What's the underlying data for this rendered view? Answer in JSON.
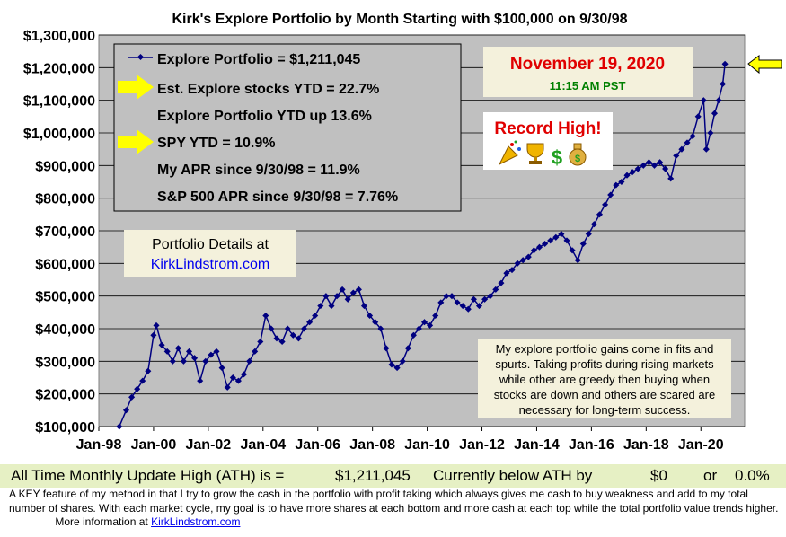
{
  "chart_data": {
    "type": "line",
    "title": "Kirk's Explore Portfolio by Month Starting with $100,000 on 9/30/98",
    "xlabel": "",
    "ylabel": "",
    "ylim": [
      100000,
      1300000
    ],
    "yticks": [
      "$100,000",
      "$200,000",
      "$300,000",
      "$400,000",
      "$500,000",
      "$600,000",
      "$700,000",
      "$800,000",
      "$900,000",
      "$1,000,000",
      "$1,100,000",
      "$1,200,000",
      "$1,300,000"
    ],
    "xlim": [
      1998.0,
      2021.6
    ],
    "xticks": [
      {
        "label": "Jan-98",
        "x": 1998.0
      },
      {
        "label": "Jan-00",
        "x": 2000.0
      },
      {
        "label": "Jan-02",
        "x": 2002.0
      },
      {
        "label": "Jan-04",
        "x": 2004.0
      },
      {
        "label": "Jan-06",
        "x": 2006.0
      },
      {
        "label": "Jan-08",
        "x": 2008.0
      },
      {
        "label": "Jan-10",
        "x": 2010.0
      },
      {
        "label": "Jan-12",
        "x": 2012.0
      },
      {
        "label": "Jan-14",
        "x": 2014.0
      },
      {
        "label": "Jan-16",
        "x": 2016.0
      },
      {
        "label": "Jan-18",
        "x": 2018.0
      },
      {
        "label": "Jan-20",
        "x": 2020.0
      }
    ],
    "grid": true,
    "legend_position": "top-left",
    "series": [
      {
        "name": "Explore Portfolio",
        "color": "#000080",
        "points": [
          [
            1998.75,
            100000
          ],
          [
            1999.0,
            150000
          ],
          [
            1999.2,
            190000
          ],
          [
            1999.4,
            215000
          ],
          [
            1999.6,
            240000
          ],
          [
            1999.8,
            270000
          ],
          [
            2000.0,
            380000
          ],
          [
            2000.1,
            410000
          ],
          [
            2000.3,
            350000
          ],
          [
            2000.5,
            330000
          ],
          [
            2000.7,
            300000
          ],
          [
            2000.9,
            340000
          ],
          [
            2001.1,
            300000
          ],
          [
            2001.3,
            330000
          ],
          [
            2001.5,
            310000
          ],
          [
            2001.7,
            240000
          ],
          [
            2001.9,
            300000
          ],
          [
            2002.1,
            320000
          ],
          [
            2002.3,
            330000
          ],
          [
            2002.5,
            280000
          ],
          [
            2002.7,
            220000
          ],
          [
            2002.9,
            250000
          ],
          [
            2003.1,
            240000
          ],
          [
            2003.3,
            260000
          ],
          [
            2003.5,
            300000
          ],
          [
            2003.7,
            330000
          ],
          [
            2003.9,
            360000
          ],
          [
            2004.1,
            440000
          ],
          [
            2004.3,
            400000
          ],
          [
            2004.5,
            370000
          ],
          [
            2004.7,
            360000
          ],
          [
            2004.9,
            400000
          ],
          [
            2005.1,
            380000
          ],
          [
            2005.3,
            370000
          ],
          [
            2005.5,
            400000
          ],
          [
            2005.7,
            420000
          ],
          [
            2005.9,
            440000
          ],
          [
            2006.1,
            470000
          ],
          [
            2006.3,
            500000
          ],
          [
            2006.5,
            470000
          ],
          [
            2006.7,
            500000
          ],
          [
            2006.9,
            520000
          ],
          [
            2007.1,
            490000
          ],
          [
            2007.3,
            510000
          ],
          [
            2007.5,
            520000
          ],
          [
            2007.7,
            470000
          ],
          [
            2007.9,
            440000
          ],
          [
            2008.1,
            420000
          ],
          [
            2008.3,
            400000
          ],
          [
            2008.5,
            340000
          ],
          [
            2008.7,
            290000
          ],
          [
            2008.9,
            280000
          ],
          [
            2009.1,
            300000
          ],
          [
            2009.3,
            340000
          ],
          [
            2009.5,
            380000
          ],
          [
            2009.7,
            400000
          ],
          [
            2009.9,
            420000
          ],
          [
            2010.1,
            410000
          ],
          [
            2010.3,
            440000
          ],
          [
            2010.5,
            480000
          ],
          [
            2010.7,
            500000
          ],
          [
            2010.9,
            500000
          ],
          [
            2011.1,
            480000
          ],
          [
            2011.3,
            470000
          ],
          [
            2011.5,
            460000
          ],
          [
            2011.7,
            490000
          ],
          [
            2011.9,
            470000
          ],
          [
            2012.1,
            490000
          ],
          [
            2012.3,
            500000
          ],
          [
            2012.5,
            520000
          ],
          [
            2012.7,
            540000
          ],
          [
            2012.9,
            570000
          ],
          [
            2013.1,
            580000
          ],
          [
            2013.3,
            600000
          ],
          [
            2013.5,
            610000
          ],
          [
            2013.7,
            620000
          ],
          [
            2013.9,
            640000
          ],
          [
            2014.1,
            650000
          ],
          [
            2014.3,
            660000
          ],
          [
            2014.5,
            670000
          ],
          [
            2014.7,
            680000
          ],
          [
            2014.9,
            690000
          ],
          [
            2015.1,
            670000
          ],
          [
            2015.3,
            640000
          ],
          [
            2015.5,
            610000
          ],
          [
            2015.7,
            660000
          ],
          [
            2015.9,
            690000
          ],
          [
            2016.1,
            720000
          ],
          [
            2016.3,
            750000
          ],
          [
            2016.5,
            780000
          ],
          [
            2016.7,
            810000
          ],
          [
            2016.9,
            840000
          ],
          [
            2017.1,
            850000
          ],
          [
            2017.3,
            870000
          ],
          [
            2017.5,
            880000
          ],
          [
            2017.7,
            890000
          ],
          [
            2017.9,
            900000
          ],
          [
            2018.1,
            910000
          ],
          [
            2018.3,
            900000
          ],
          [
            2018.5,
            910000
          ],
          [
            2018.7,
            890000
          ],
          [
            2018.9,
            860000
          ],
          [
            2019.1,
            930000
          ],
          [
            2019.3,
            950000
          ],
          [
            2019.5,
            970000
          ],
          [
            2019.7,
            990000
          ],
          [
            2019.9,
            1050000
          ],
          [
            2020.1,
            1100000
          ],
          [
            2020.2,
            950000
          ],
          [
            2020.35,
            1000000
          ],
          [
            2020.5,
            1060000
          ],
          [
            2020.65,
            1100000
          ],
          [
            2020.8,
            1150000
          ],
          [
            2020.88,
            1211045
          ]
        ]
      }
    ],
    "legend_lines": [
      "Explore Portfolio  =  $1,211,045",
      "Est. Explore stocks YTD =  22.7%",
      "Explore Portfolio YTD up 13.6%",
      "SPY YTD =  10.9%",
      "My APR since 9/30/98 =  11.9%",
      "S&P 500 APR since 9/30/98 =  7.76%"
    ],
    "legend_arrow_lines": [
      1,
      3
    ],
    "details_box": {
      "line1": "Portfolio Details at",
      "link": "KirkLindstrom.com"
    },
    "date_box": {
      "date": "November 19, 2020",
      "time": "11:15 AM PST"
    },
    "record_box": {
      "label": "Record High!",
      "icons": [
        "party-popper-icon",
        "trophy-icon",
        "dollar-sign-icon",
        "money-bag-icon"
      ]
    },
    "note": [
      "My explore portfolio gains come in fits and",
      "spurts. Taking profits during rising markets",
      "while other are greedy then buying when",
      "stocks are down and others are scared are",
      "necessary for long-term success."
    ],
    "colors": {
      "plot_bg": "#c0c0c0",
      "line": "#000080",
      "date_red": "#e00000",
      "time_green": "#008000",
      "arrow_yellow": "#ffff00",
      "link_blue": "#0000ee"
    }
  },
  "ath": {
    "label": "All Time Monthly Update High (ATH) is =",
    "value": "$1,211,045",
    "below_label": "Currently below ATH by",
    "amount": "$0",
    "or": "or",
    "percent": "0.0%"
  },
  "footer": {
    "text": "A KEY feature of my method in that I try to grow the cash in the portfolio with profit taking which always gives me cash to buy weakness and add to my total number of shares.  With each market cycle, my goal is to have more shares at each bottom and more cash at each top while the total portfolio value trends higher.",
    "more": "More information at",
    "link": "KirkLindstrom.com"
  }
}
